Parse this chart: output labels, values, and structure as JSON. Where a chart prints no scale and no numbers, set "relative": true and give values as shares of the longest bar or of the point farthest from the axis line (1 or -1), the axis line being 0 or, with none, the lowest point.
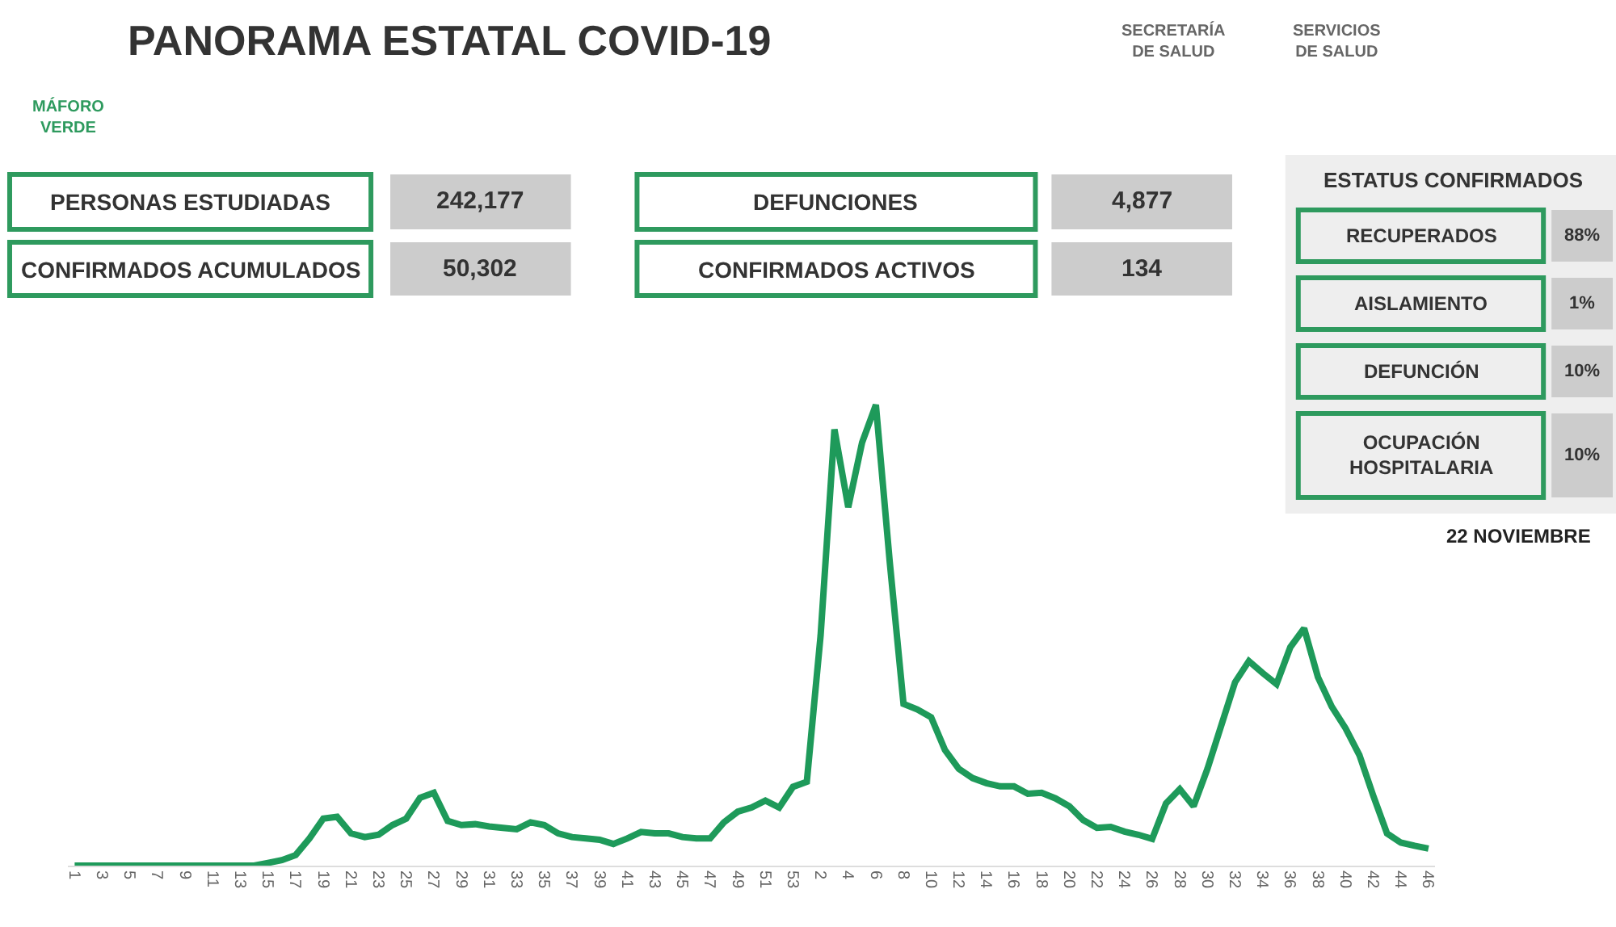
{
  "chart_data": {
    "type": "line",
    "relative": true,
    "title": "PANORAMA ESTATAL COVID-19",
    "categories": [
      "1",
      null,
      "3",
      null,
      "5",
      null,
      "7",
      null,
      "9",
      null,
      "11",
      null,
      "13",
      null,
      "15",
      null,
      "17",
      null,
      "19",
      null,
      "21",
      null,
      "23",
      null,
      "25",
      null,
      "27",
      null,
      "29",
      null,
      "31",
      null,
      "33",
      null,
      "35",
      null,
      "37",
      null,
      "39",
      null,
      "41",
      null,
      "43",
      null,
      "45",
      null,
      "47",
      null,
      "49",
      null,
      "51",
      null,
      "53",
      null,
      "2",
      null,
      "4",
      null,
      "6",
      null,
      "8",
      null,
      "10",
      null,
      "12",
      null,
      "14",
      null,
      "16",
      null,
      "18",
      null,
      "20",
      null,
      "22",
      null,
      "24",
      null,
      "26",
      null,
      "28",
      null,
      "30",
      null,
      "32",
      null,
      "34",
      null,
      "36",
      null,
      "38",
      null,
      "40",
      null,
      "42",
      null,
      "44",
      null,
      "46"
    ],
    "series": [
      {
        "color": "#1e9a5a",
        "values": [
          0,
          0,
          0,
          0,
          0,
          0,
          0,
          0,
          0,
          0,
          0,
          0,
          0,
          0,
          0.006,
          0.012,
          0.023,
          0.059,
          0.102,
          0.106,
          0.07,
          0.062,
          0.067,
          0.088,
          0.102,
          0.147,
          0.158,
          0.097,
          0.088,
          0.09,
          0.085,
          0.082,
          0.079,
          0.094,
          0.088,
          0.07,
          0.062,
          0.059,
          0.056,
          0.047,
          0.059,
          0.073,
          0.07,
          0.07,
          0.062,
          0.059,
          0.059,
          0.094,
          0.117,
          0.126,
          0.141,
          0.126,
          0.171,
          0.182,
          0.5,
          0.947,
          0.778,
          0.918,
          1.0,
          0.66,
          0.351,
          0.339,
          0.322,
          0.251,
          0.21,
          0.19,
          0.179,
          0.172,
          0.172,
          0.156,
          0.158,
          0.146,
          0.129,
          0.099,
          0.082,
          0.084,
          0.074,
          0.067,
          0.058,
          0.135,
          0.166,
          0.129,
          0.21,
          0.304,
          0.398,
          0.444,
          0.418,
          0.394,
          0.474,
          0.515,
          0.409,
          0.345,
          0.298,
          0.24,
          0.152,
          0.07,
          0.05,
          0.043,
          0.037
        ]
      }
    ],
    "annotations": [
      "MÁFORO\nVERDE",
      "SECRETARÍA\nDE SALUD",
      "SERVICIOS\nDE SALUD",
      "PERSONAS ESTUDIADAS",
      "242,177",
      "CONFIRMADOS ACUMULADOS",
      "50,302",
      "DEFUNCIONES",
      "4,877",
      "CONFIRMADOS ACTIVOS",
      "134",
      "ESTATUS CONFIRMADOS",
      "RECUPERADOS",
      "88%",
      "AISLAMIENTO",
      "1%",
      "DEFUNCIÓN",
      "10%",
      "OCUPACIÓN\nHOSPITALARIA",
      "10%",
      "22 NOVIEMBRE"
    ]
  }
}
